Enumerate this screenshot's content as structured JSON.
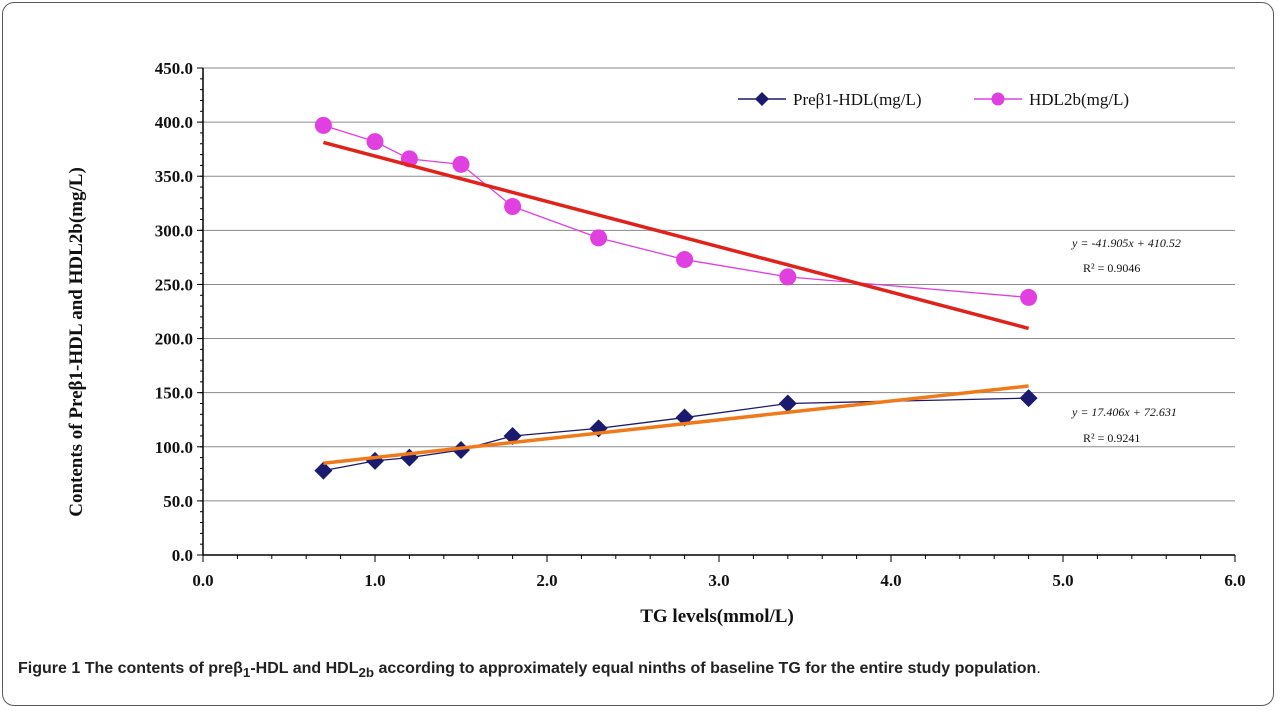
{
  "chart_data": {
    "type": "line",
    "ylabel": "Contents of Preβ1-HDL and HDL2b(mg/L)",
    "xlabel": "TG levels(mmol/L)",
    "xlim": [
      0.0,
      6.0
    ],
    "ylim": [
      0.0,
      450.0
    ],
    "xticks": [
      "0.0",
      "1.0",
      "2.0",
      "3.0",
      "4.0",
      "5.0",
      "6.0"
    ],
    "yticks": [
      "0.0",
      "50.0",
      "100.0",
      "150.0",
      "200.0",
      "250.0",
      "300.0",
      "350.0",
      "400.0",
      "450.0"
    ],
    "grid": true,
    "legend_position": "top-right",
    "series": [
      {
        "name": "Preβ1-HDL(mg/L)",
        "marker": "diamond",
        "color": "#1a1a6e",
        "x": [
          0.7,
          1.0,
          1.2,
          1.5,
          1.8,
          2.3,
          2.8,
          3.4,
          4.8
        ],
        "y": [
          78,
          87,
          90,
          97,
          110,
          117,
          127,
          140,
          145
        ]
      },
      {
        "name": "HDL2b(mg/L)",
        "marker": "circle",
        "color": "#e040e0",
        "x": [
          0.7,
          1.0,
          1.2,
          1.5,
          1.8,
          2.3,
          2.8,
          3.4,
          4.8
        ],
        "y": [
          397,
          382,
          366,
          361,
          322,
          293,
          273,
          257,
          238
        ]
      }
    ],
    "trendlines": [
      {
        "for": "HDL2b(mg/L)",
        "color": "#e0221a",
        "slope": -41.905,
        "intercept": 410.52,
        "x_range": [
          0.7,
          4.8
        ],
        "equation": "y = -41.905x + 410.52",
        "r2": "R² = 0.9046"
      },
      {
        "for": "Preβ1-HDL(mg/L)",
        "color": "#f07a1a",
        "slope": 17.406,
        "intercept": 72.631,
        "x_range": [
          0.7,
          4.8
        ],
        "equation": "y = 17.406x + 72.631",
        "r2": "R² = 0.9241"
      }
    ]
  },
  "caption": {
    "label": "Figure 1",
    "text_parts": [
      "The contents of preβ",
      "1",
      "-HDL and HDL",
      "2b",
      " according to approximately equal ninths of baseline TG for the entire study population",
      "."
    ]
  }
}
